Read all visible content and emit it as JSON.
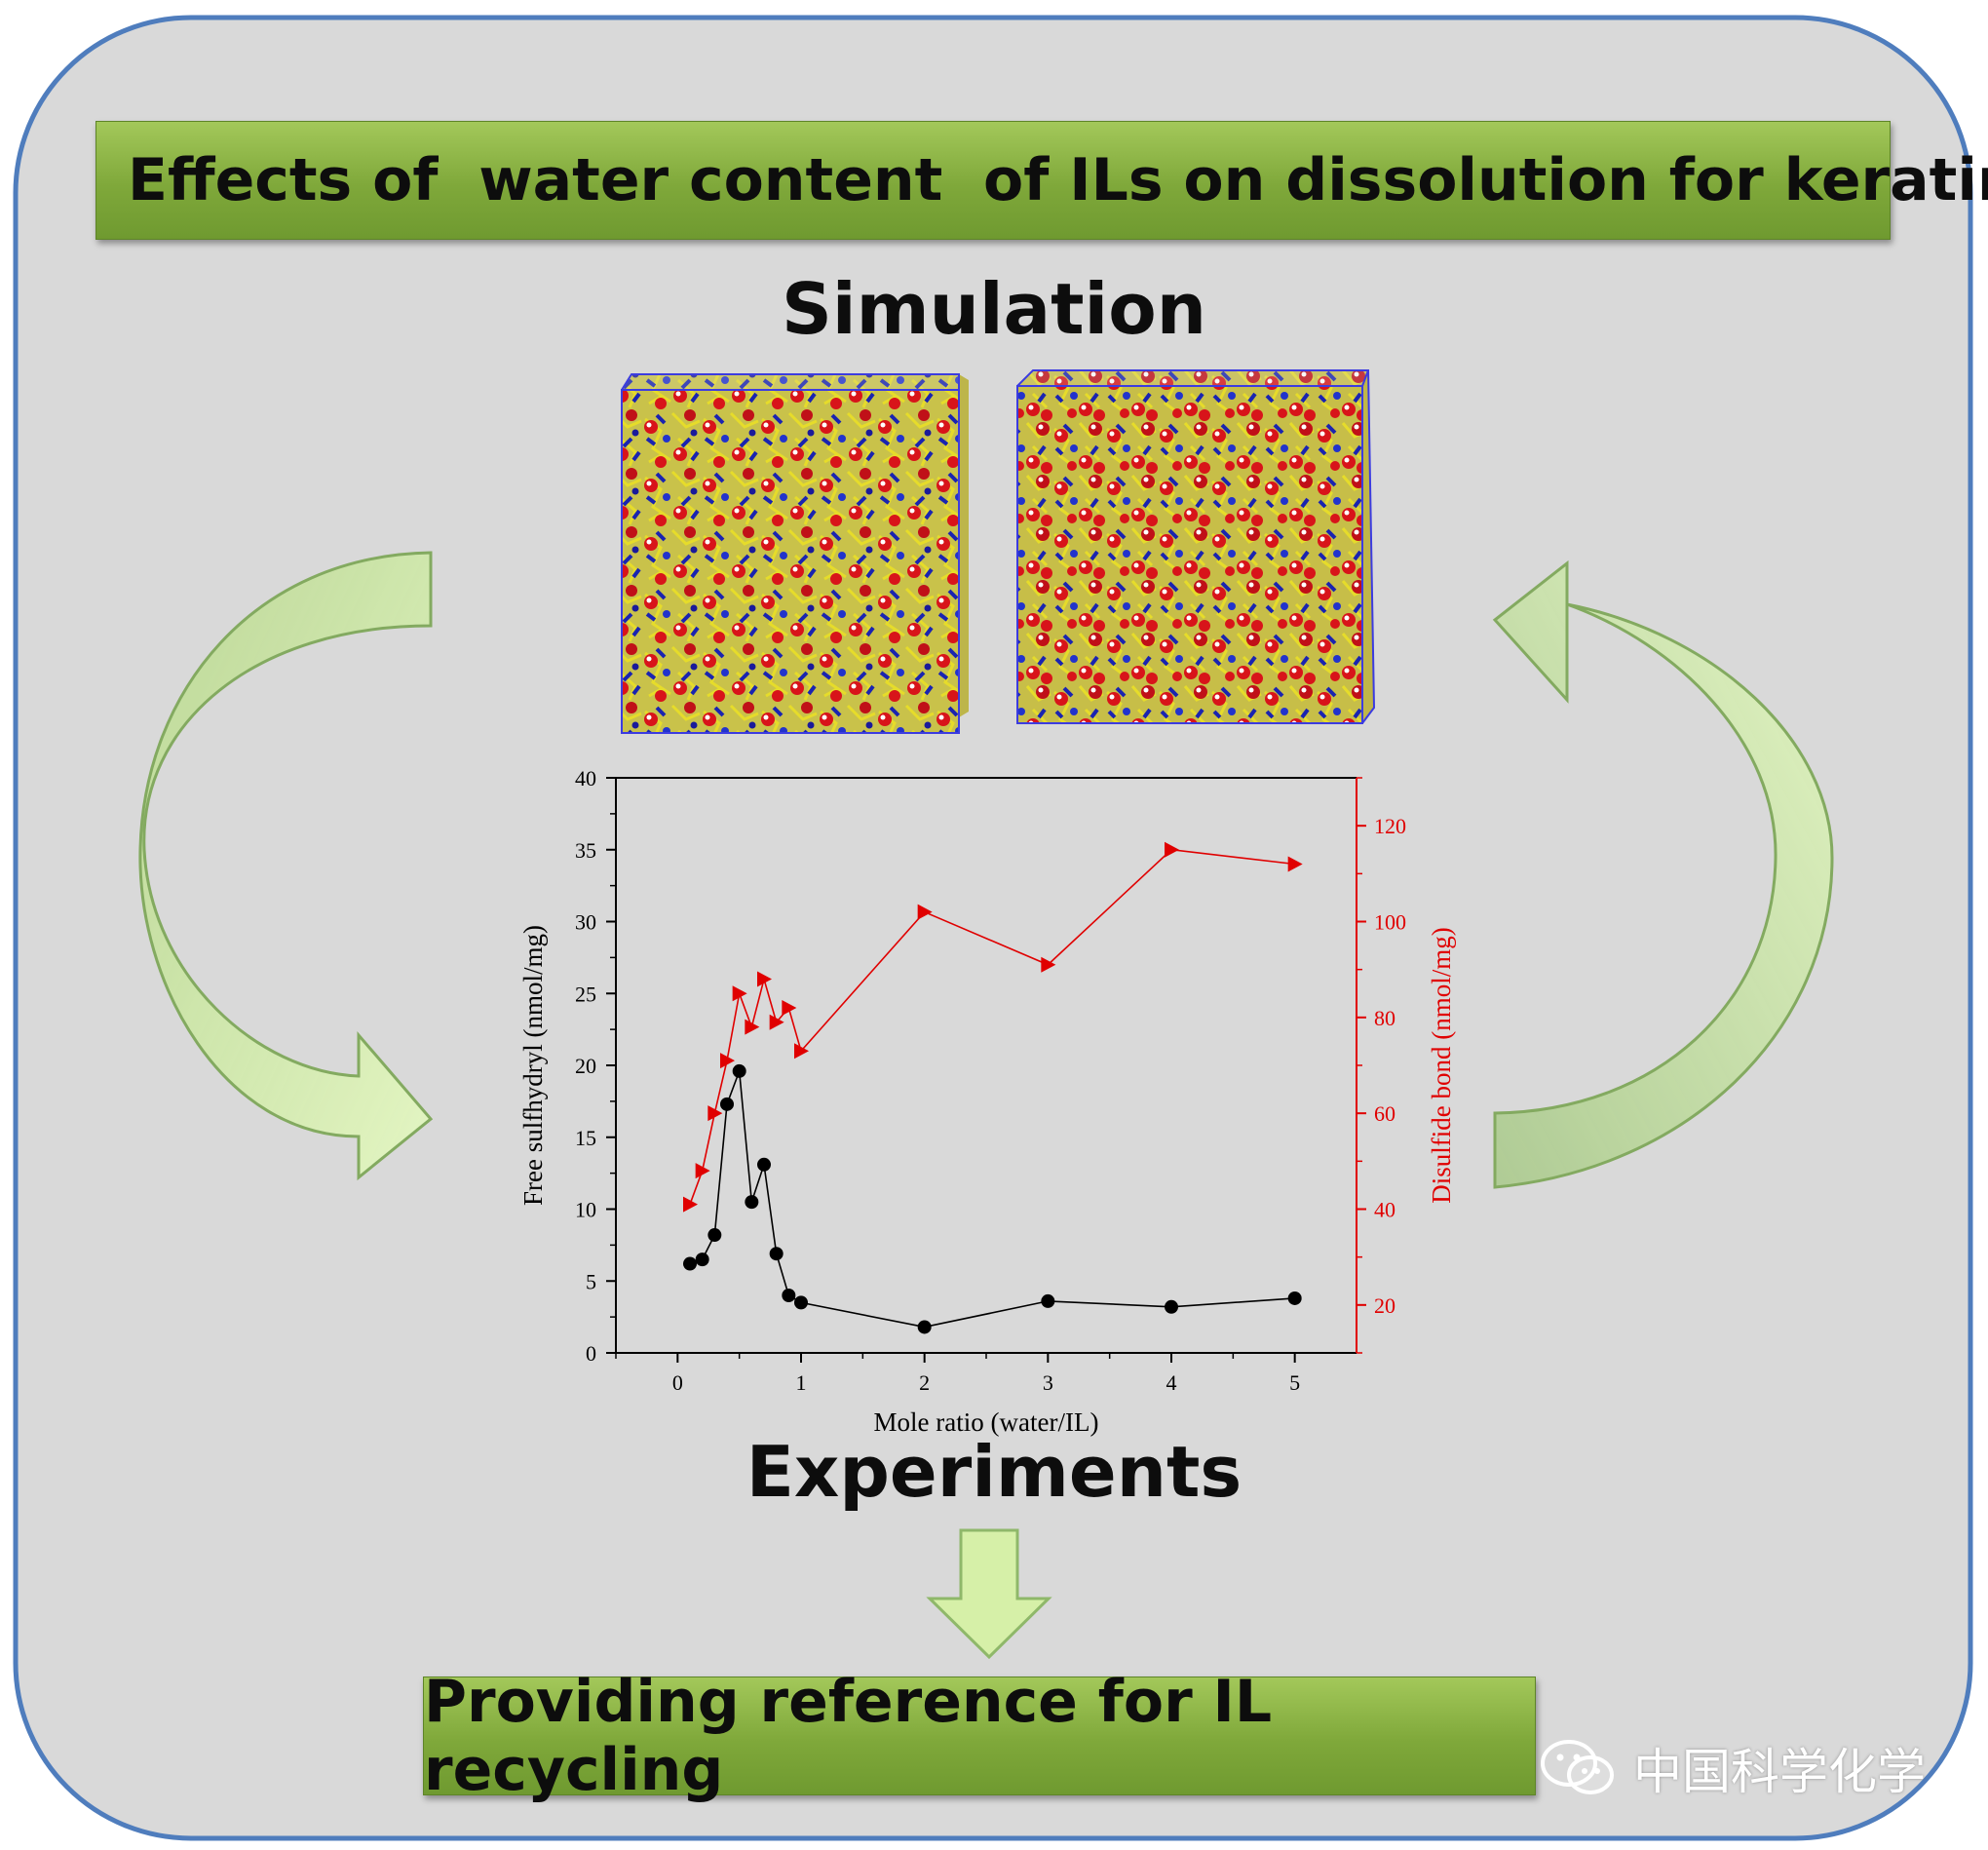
{
  "title": "Effects of  water content  of ILs on dissolution for keratin",
  "simulation_heading": "Simulation",
  "experiments_heading": "Experiments",
  "conclusion": "Providing reference for IL recycling",
  "watermark": "中国科学化学",
  "colors": {
    "panel_background": "#d9d9d9",
    "panel_border": "#4f7dbd",
    "banner_green": "#8db548",
    "arrow_green": "#c8e89a",
    "series_black": "#000000",
    "series_red": "#e00000"
  },
  "icons": {
    "left-arrow": "curved-arrow-down-right",
    "right-arrow": "curved-arrow-up-left",
    "down-arrow": "block-arrow-down",
    "watermark": "wechat-logo"
  },
  "chart_data": {
    "type": "line",
    "xlabel": "Mole ratio (water/IL)",
    "ylabel": "Free sulfhydryl (nmol/mg)",
    "y2label": "Disulfide bond (nmol/mg)",
    "xlim": [
      -0.5,
      5.5
    ],
    "ylim": [
      0,
      40
    ],
    "y2lim": [
      10,
      130
    ],
    "xticks": [
      "0",
      "1",
      "2",
      "3",
      "4",
      "5"
    ],
    "yticks": [
      "0",
      "5",
      "10",
      "15",
      "20",
      "25",
      "30",
      "35",
      "40"
    ],
    "y2ticks": [
      "20",
      "40",
      "60",
      "80",
      "100",
      "120"
    ],
    "series": [
      {
        "axis": "left",
        "marker": "circle",
        "color": "#000000",
        "x": [
          0.1,
          0.2,
          0.3,
          0.4,
          0.5,
          0.6,
          0.7,
          0.8,
          0.9,
          1.0,
          2.0,
          3.0,
          4.0,
          5.0
        ],
        "values": [
          6.2,
          6.5,
          8.2,
          17.3,
          19.6,
          10.5,
          13.1,
          6.9,
          4.0,
          3.5,
          1.8,
          3.6,
          3.2,
          3.8
        ]
      },
      {
        "axis": "right",
        "marker": "triangle-right",
        "color": "#e00000",
        "x": [
          0.1,
          0.2,
          0.3,
          0.4,
          0.5,
          0.6,
          0.7,
          0.8,
          0.9,
          1.0,
          2.0,
          3.0,
          4.0,
          5.0
        ],
        "values": [
          41,
          48,
          60,
          71,
          85,
          78,
          88,
          79,
          82,
          73,
          102,
          91,
          115,
          112
        ]
      }
    ]
  }
}
